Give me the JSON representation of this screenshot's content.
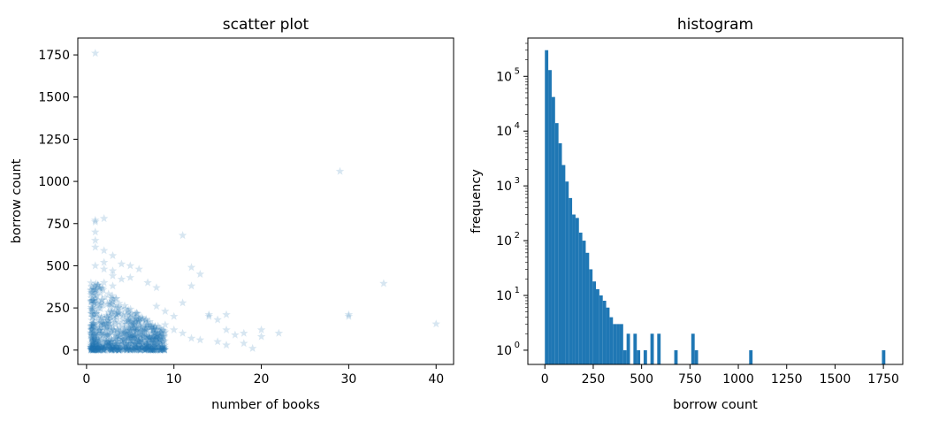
{
  "colors": {
    "series": "#1f77b4",
    "axis": "#000000",
    "background": "#ffffff"
  },
  "chart_data": [
    {
      "type": "scatter",
      "title": "scatter plot",
      "xlabel": "number of books",
      "ylabel": "borrow count",
      "xlim": [
        -1,
        42
      ],
      "ylim": [
        -85,
        1850
      ],
      "xticks": [
        0,
        10,
        20,
        30,
        40
      ],
      "xtick_labels": [
        "0",
        "10",
        "20",
        "30",
        "40"
      ],
      "yticks": [
        0,
        250,
        500,
        750,
        1000,
        1250,
        1500,
        1750
      ],
      "ytick_labels": [
        "0",
        "250",
        "500",
        "750",
        "1000",
        "1250",
        "1500",
        "1750"
      ],
      "grid": false,
      "marker": "star",
      "marker_alpha": 0.18,
      "series": [
        {
          "x": [
            1,
            1,
            1,
            2,
            1,
            1,
            1,
            2,
            3,
            2,
            1,
            4,
            2,
            3,
            5,
            6,
            3,
            4,
            5,
            7,
            8,
            2,
            3,
            11,
            12,
            13,
            12,
            14,
            15,
            16,
            14,
            16,
            18,
            19,
            20,
            20,
            22,
            29,
            30,
            30,
            34,
            40,
            11,
            10,
            9,
            8,
            9,
            10,
            11,
            12,
            13,
            17,
            18,
            15,
            16
          ],
          "y": [
            1760,
            770,
            760,
            780,
            700,
            650,
            610,
            590,
            560,
            520,
            500,
            510,
            480,
            470,
            500,
            480,
            440,
            420,
            430,
            400,
            370,
            400,
            380,
            680,
            490,
            450,
            380,
            210,
            180,
            210,
            200,
            120,
            100,
            10,
            120,
            80,
            100,
            1060,
            210,
            200,
            395,
            155,
            280,
            200,
            230,
            260,
            150,
            120,
            100,
            70,
            60,
            90,
            40,
            50,
            30
          ]
        }
      ],
      "dense_band": {
        "x_range": [
          0.5,
          9
        ],
        "y_max_at_x": [
          [
            1,
            430
          ],
          [
            2,
            380
          ],
          [
            3,
            330
          ],
          [
            4,
            290
          ],
          [
            5,
            250
          ],
          [
            6,
            220
          ],
          [
            7,
            180
          ],
          [
            8,
            150
          ],
          [
            9,
            110
          ]
        ]
      }
    },
    {
      "type": "bar",
      "title": "histogram",
      "xlabel": "borrow count",
      "ylabel": "frequency",
      "yscale": "log",
      "xlim": [
        -88,
        1850
      ],
      "ylim": [
        0.55,
        500000
      ],
      "xticks": [
        0,
        250,
        500,
        750,
        1000,
        1250,
        1500,
        1750
      ],
      "xtick_labels": [
        "0",
        "250",
        "500",
        "750",
        "1000",
        "1250",
        "1500",
        "1750"
      ],
      "yticks": [
        1,
        10,
        100,
        1000,
        10000,
        100000
      ],
      "ytick_exponents": [
        "0",
        "1",
        "2",
        "3",
        "4",
        "5"
      ],
      "grid": false,
      "bin_width": 17.6,
      "bin_starts": [
        0,
        17.6,
        35.2,
        52.8,
        70.4,
        88,
        105.6,
        123.2,
        140.8,
        158.4,
        176,
        193.6,
        211.2,
        228.8,
        246.4,
        264,
        281.6,
        299.2,
        316.8,
        334.4,
        352,
        369.6,
        387.2,
        404.8,
        422.4,
        440,
        457.6,
        475.2,
        492.8,
        510.4,
        528,
        545.6,
        563.2,
        580.8,
        598.4,
        616,
        633.6,
        651.2,
        668.8,
        686.4,
        704,
        721.6,
        739.2,
        756.8,
        774.4,
        792,
        809.6,
        827.2,
        844.8,
        862.4,
        880,
        897.6,
        915.2,
        932.8,
        950.4,
        968,
        985.6,
        1003.2,
        1020.8,
        1038.4,
        1056,
        1073.6,
        1091.2,
        1108.8,
        1126.4,
        1144,
        1161.6,
        1179.2,
        1196.8,
        1214.4,
        1232,
        1249.6,
        1267.2,
        1284.8,
        1302.4,
        1320,
        1337.6,
        1355.2,
        1372.8,
        1390.4,
        1408,
        1425.6,
        1443.2,
        1460.8,
        1478.4,
        1496,
        1513.6,
        1531.2,
        1548.8,
        1566.4,
        1584,
        1601.6,
        1619.2,
        1636.8,
        1654.4,
        1672,
        1689.6,
        1707.2,
        1724.8,
        1742.4
      ],
      "values": [
        300000,
        130000,
        42000,
        14000,
        6000,
        2400,
        1200,
        600,
        300,
        260,
        140,
        100,
        60,
        30,
        18,
        13,
        10,
        8,
        6,
        4,
        3,
        3,
        3,
        1,
        2,
        0,
        2,
        1,
        0,
        1,
        0,
        2,
        0,
        2,
        0,
        0,
        0,
        0,
        1,
        0,
        0,
        0,
        0,
        2,
        1,
        0,
        0,
        0,
        0,
        0,
        0,
        0,
        0,
        0,
        0,
        0,
        0,
        0,
        0,
        0,
        1,
        0,
        0,
        0,
        0,
        0,
        0,
        0,
        0,
        0,
        0,
        0,
        0,
        0,
        0,
        0,
        0,
        0,
        0,
        0,
        0,
        0,
        0,
        0,
        0,
        0,
        0,
        0,
        0,
        0,
        0,
        0,
        0,
        0,
        0,
        0,
        0,
        0,
        0,
        1
      ]
    }
  ]
}
